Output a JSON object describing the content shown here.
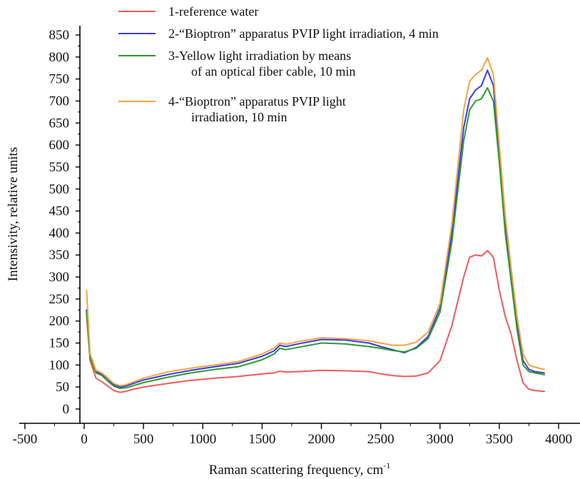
{
  "chart_data": {
    "type": "line",
    "title": "",
    "xlabel": "Raman scattering frequency, cm",
    "xlabel_superscript": "-1",
    "ylabel": "Intensivity, relative units",
    "xlim": [
      -500,
      4200
    ],
    "ylim": [
      -30,
      870
    ],
    "x_ticks": [
      -500,
      0,
      500,
      1000,
      1500,
      2000,
      2500,
      3000,
      3500,
      4000
    ],
    "y_ticks": [
      0,
      50,
      100,
      150,
      200,
      250,
      300,
      350,
      400,
      450,
      500,
      550,
      600,
      650,
      700,
      750,
      800,
      850
    ],
    "grid": false,
    "legend_position": "top",
    "series": [
      {
        "name": "1-reference water",
        "name_lines": [
          "1-reference water"
        ],
        "color": "#f25a5a",
        "x": [
          20,
          50,
          100,
          150,
          200,
          250,
          300,
          350,
          400,
          500,
          700,
          900,
          1100,
          1300,
          1500,
          1600,
          1650,
          1700,
          1800,
          2000,
          2200,
          2400,
          2500,
          2600,
          2700,
          2800,
          2900,
          3000,
          3100,
          3200,
          3250,
          3300,
          3350,
          3400,
          3450,
          3500,
          3550,
          3600,
          3650,
          3700,
          3750,
          3800,
          3880
        ],
        "y": [
          215,
          110,
          70,
          62,
          52,
          42,
          38,
          40,
          44,
          50,
          58,
          65,
          70,
          74,
          80,
          82,
          86,
          84,
          85,
          88,
          87,
          85,
          80,
          76,
          74,
          75,
          82,
          110,
          190,
          300,
          345,
          350,
          348,
          360,
          345,
          270,
          210,
          170,
          110,
          60,
          45,
          42,
          40
        ]
      },
      {
        "name": "2-“Bioptron” apparatus PVIP light irradiation, 4 min",
        "name_lines": [
          "2-“Bioptron” apparatus PVIP light irradiation, 4 min"
        ],
        "color": "#3a3af0",
        "x": [
          20,
          50,
          100,
          150,
          200,
          250,
          300,
          350,
          400,
          500,
          700,
          900,
          1100,
          1300,
          1500,
          1600,
          1650,
          1700,
          1800,
          2000,
          2200,
          2400,
          2500,
          2600,
          2700,
          2800,
          2900,
          3000,
          3100,
          3200,
          3250,
          3300,
          3350,
          3400,
          3450,
          3500,
          3550,
          3600,
          3650,
          3700,
          3750,
          3800,
          3880
        ],
        "y": [
          225,
          120,
          85,
          80,
          68,
          55,
          50,
          52,
          57,
          66,
          78,
          88,
          96,
          104,
          120,
          132,
          145,
          142,
          148,
          158,
          157,
          150,
          142,
          135,
          128,
          140,
          165,
          230,
          400,
          640,
          705,
          725,
          735,
          770,
          735,
          580,
          420,
          300,
          190,
          110,
          90,
          85,
          82
        ]
      },
      {
        "name": "3-Yellow light irradiation by means of an optical fiber cable, 10 min",
        "name_lines": [
          "3-Yellow light irradiation by means",
          "of an optical fiber cable, 10 min"
        ],
        "color": "#2e9a2e",
        "x": [
          20,
          50,
          100,
          150,
          200,
          250,
          300,
          350,
          400,
          500,
          700,
          900,
          1100,
          1300,
          1500,
          1600,
          1650,
          1700,
          1800,
          2000,
          2200,
          2400,
          2500,
          2600,
          2700,
          2800,
          2900,
          3000,
          3100,
          3200,
          3250,
          3300,
          3350,
          3400,
          3450,
          3500,
          3550,
          3600,
          3650,
          3700,
          3750,
          3800,
          3880
        ],
        "y": [
          220,
          115,
          82,
          76,
          63,
          52,
          47,
          48,
          52,
          60,
          72,
          82,
          90,
          96,
          112,
          125,
          138,
          135,
          140,
          150,
          148,
          142,
          138,
          133,
          130,
          138,
          160,
          220,
          380,
          610,
          680,
          700,
          705,
          730,
          700,
          560,
          400,
          290,
          180,
          100,
          85,
          82,
          78
        ]
      },
      {
        "name": "4-“Bioptron” apparatus PVIP light irradiation, 10 min",
        "name_lines": [
          "4-“Bioptron” apparatus PVIP light",
          "irradiation, 10 min"
        ],
        "color": "#f2a440",
        "x": [
          20,
          50,
          100,
          150,
          200,
          250,
          300,
          350,
          400,
          500,
          700,
          900,
          1100,
          1300,
          1500,
          1600,
          1650,
          1700,
          1800,
          2000,
          2200,
          2400,
          2500,
          2600,
          2700,
          2800,
          2900,
          3000,
          3100,
          3200,
          3250,
          3300,
          3350,
          3400,
          3450,
          3500,
          3550,
          3600,
          3650,
          3700,
          3750,
          3800,
          3880
        ],
        "y": [
          270,
          125,
          88,
          82,
          70,
          58,
          53,
          55,
          60,
          70,
          84,
          93,
          100,
          108,
          125,
          138,
          150,
          147,
          153,
          162,
          160,
          155,
          150,
          145,
          145,
          152,
          175,
          240,
          420,
          680,
          745,
          760,
          770,
          798,
          760,
          600,
          440,
          320,
          210,
          125,
          100,
          95,
          90
        ]
      }
    ]
  }
}
